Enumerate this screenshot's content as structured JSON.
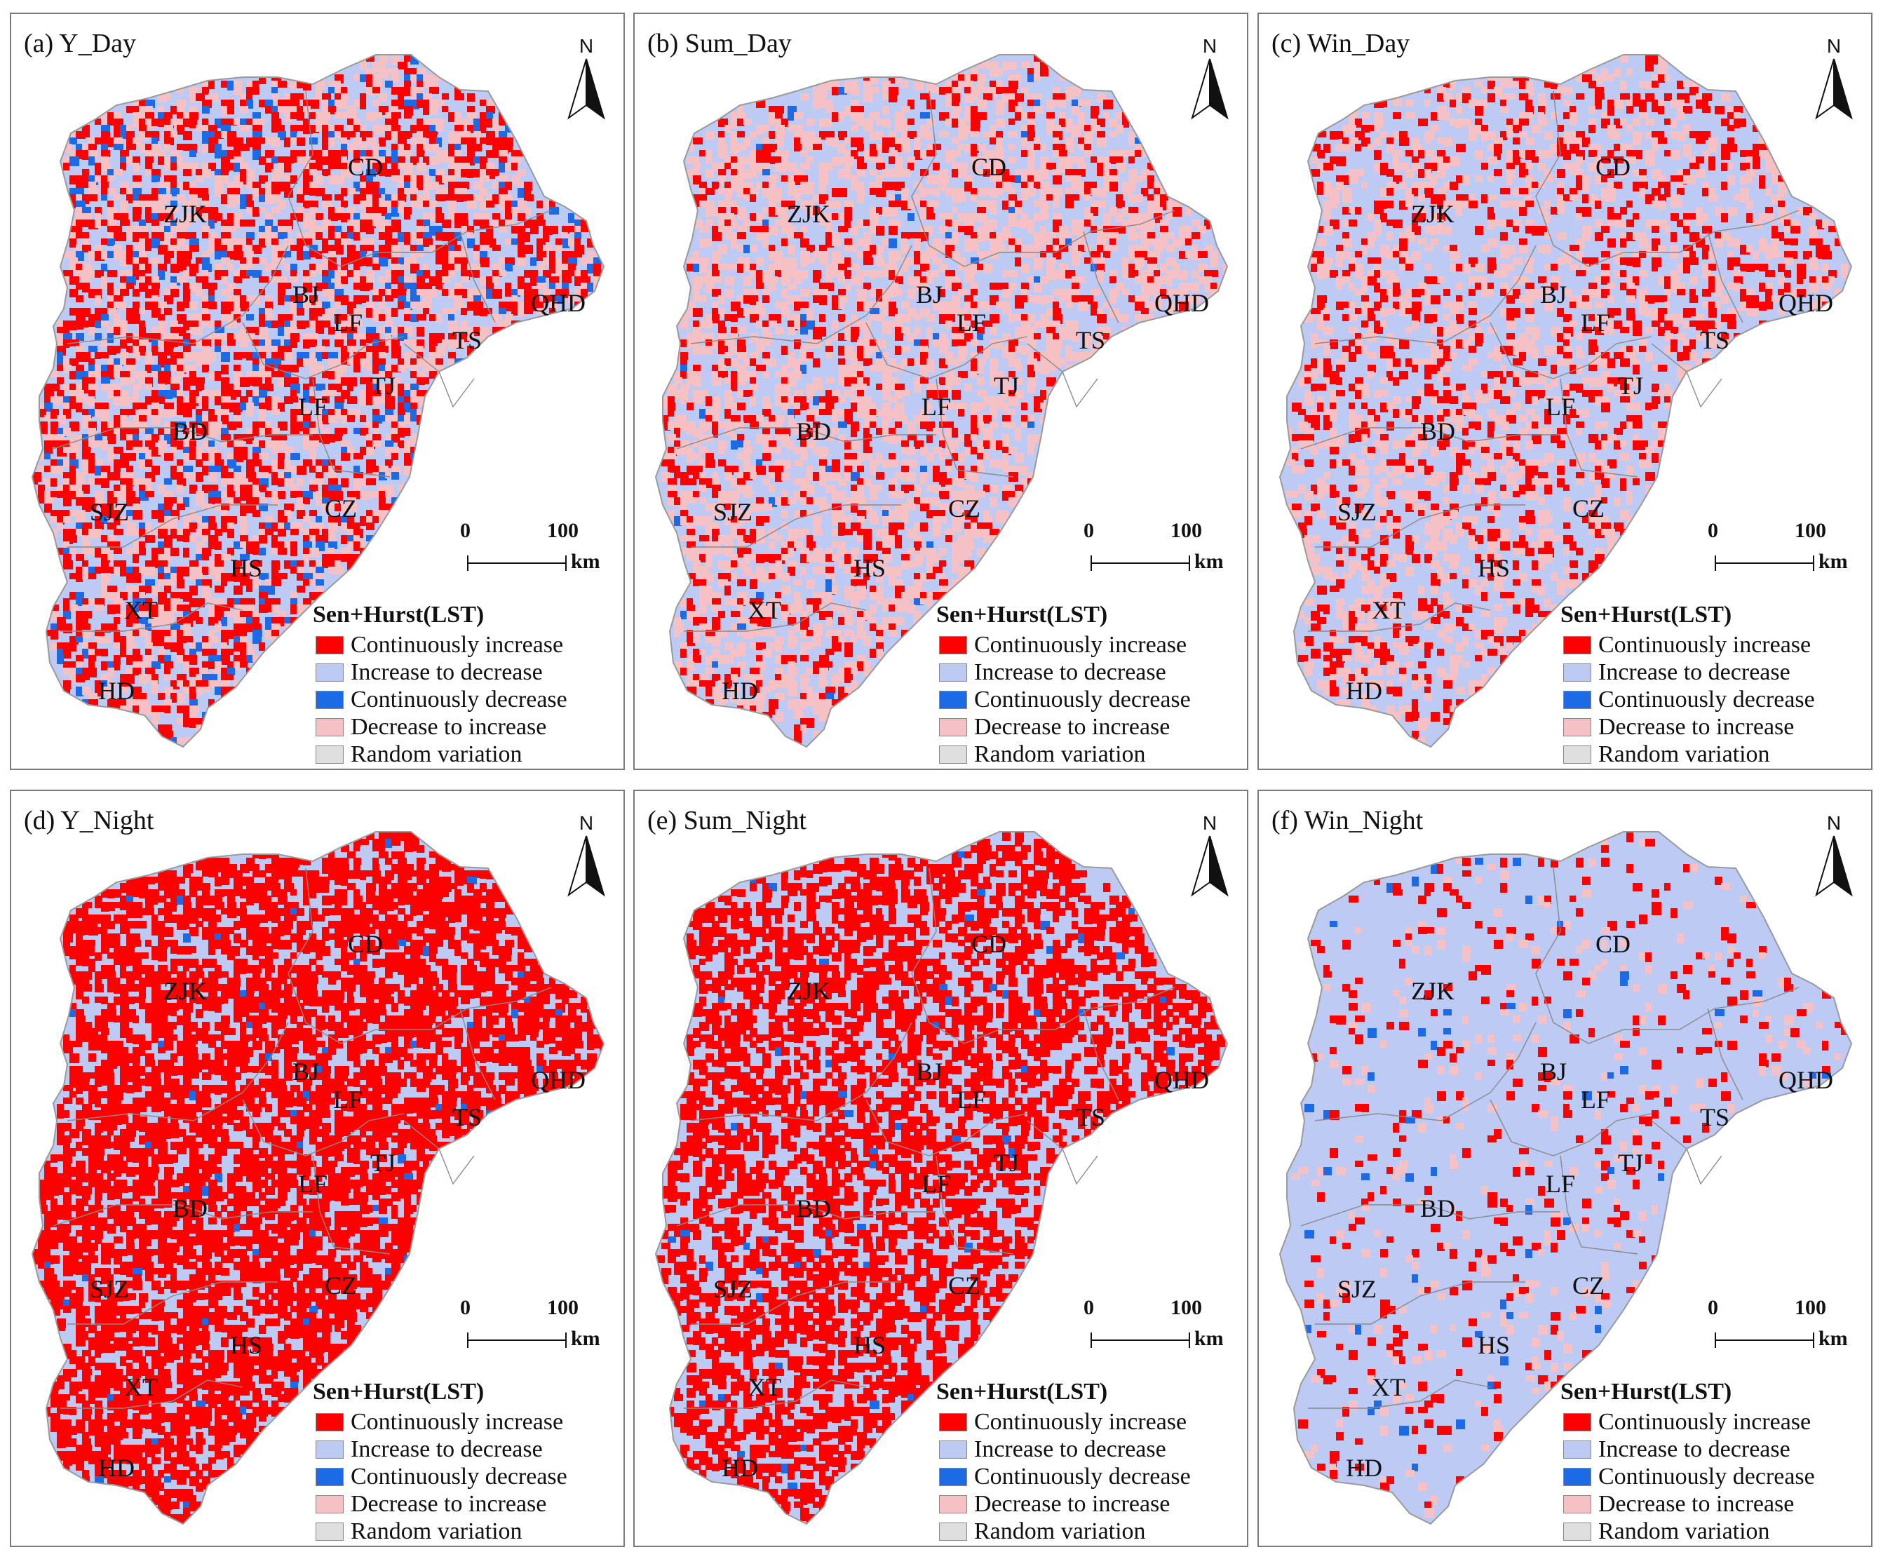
{
  "panels": [
    {
      "title": "(a) Y_Day",
      "base": "increase_to_decrease",
      "mix": {
        "continuously_increase": 0.28,
        "decrease_to_increase": 0.22,
        "continuously_decrease": 0.06
      }
    },
    {
      "title": "(b) Sum_Day",
      "base": "increase_to_decrease",
      "mix": {
        "continuously_increase": 0.14,
        "decrease_to_increase": 0.32,
        "continuously_decrease": 0.01
      }
    },
    {
      "title": "(c) Win_Day",
      "base": "increase_to_decrease",
      "mix": {
        "continuously_increase": 0.16,
        "decrease_to_increase": 0.2,
        "continuously_decrease": 0.0
      }
    },
    {
      "title": "(d) Y_Night",
      "base": "increase_to_decrease",
      "mix": {
        "continuously_increase": 0.62,
        "decrease_to_increase": 0.0,
        "continuously_decrease": 0.01
      }
    },
    {
      "title": "(e) Sum_Night",
      "base": "increase_to_decrease",
      "mix": {
        "continuously_increase": 0.5,
        "decrease_to_increase": 0.0,
        "continuously_decrease": 0.01
      }
    },
    {
      "title": "(f) Win_Night",
      "base": "increase_to_decrease",
      "mix": {
        "continuously_increase": 0.05,
        "decrease_to_increase": 0.04,
        "continuously_decrease": 0.01
      }
    }
  ],
  "cities": [
    "CD",
    "ZJK",
    "BJ",
    "LF",
    "QHD",
    "TS",
    "TJ",
    "LF",
    "BD",
    "SJZ",
    "CZ",
    "HS",
    "XT",
    "HD"
  ],
  "north_label": "N",
  "scale_bar": {
    "start": "0",
    "end": "100",
    "unit": "km"
  },
  "legend": {
    "title": "Sen+Hurst(LST)",
    "items": [
      {
        "key": "continuously_increase",
        "label": "Continuously increase",
        "color": "#ff0000"
      },
      {
        "key": "increase_to_decrease",
        "label": "Increase to decrease",
        "color": "#bccaf4"
      },
      {
        "key": "continuously_decrease",
        "label": "Continuously decrease",
        "color": "#1c6ae6"
      },
      {
        "key": "decrease_to_increase",
        "label": "Decrease to increase",
        "color": "#f6c1c4"
      },
      {
        "key": "random_variation",
        "label": "Random variation",
        "color": "#dedede"
      }
    ]
  }
}
